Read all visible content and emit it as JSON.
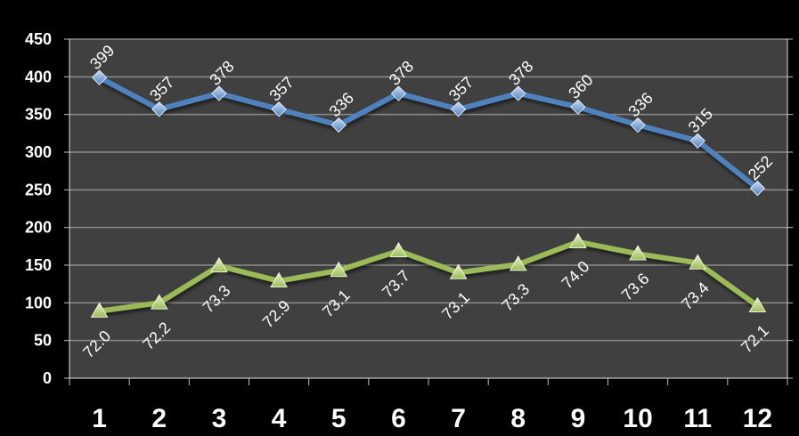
{
  "chart_data": {
    "type": "line",
    "categories": [
      "1",
      "2",
      "3",
      "4",
      "5",
      "6",
      "7",
      "8",
      "9",
      "10",
      "11",
      "12"
    ],
    "ylim": [
      0,
      450
    ],
    "yticks": [
      0,
      50,
      100,
      150,
      200,
      250,
      300,
      350,
      400,
      450
    ],
    "grid": true,
    "series": [
      {
        "color": "#4f81bd",
        "marker": "diamond",
        "values": [
          399,
          357,
          378,
          357,
          336,
          378,
          357,
          378,
          360,
          336,
          315,
          252
        ],
        "labels": [
          "399",
          "357",
          "378",
          "357",
          "336",
          "378",
          "357",
          "378",
          "360",
          "336",
          "315",
          "252"
        ]
      },
      {
        "color": "#9bbb59",
        "marker": "triangle",
        "values": [
          89,
          100,
          149,
          129,
          143,
          169,
          140,
          151,
          181,
          165,
          153,
          96
        ],
        "labels": [
          "72.0",
          "72.2",
          "73.3",
          "72.9",
          "73.1",
          "73.7",
          "73.1",
          "73.3",
          "74.0",
          "73.6",
          "73.4",
          "72.1"
        ]
      }
    ],
    "colors": {
      "background": "#000000",
      "plot_area": "#404040",
      "gridline": "#8c8c8c",
      "text": "#ffffff"
    }
  }
}
